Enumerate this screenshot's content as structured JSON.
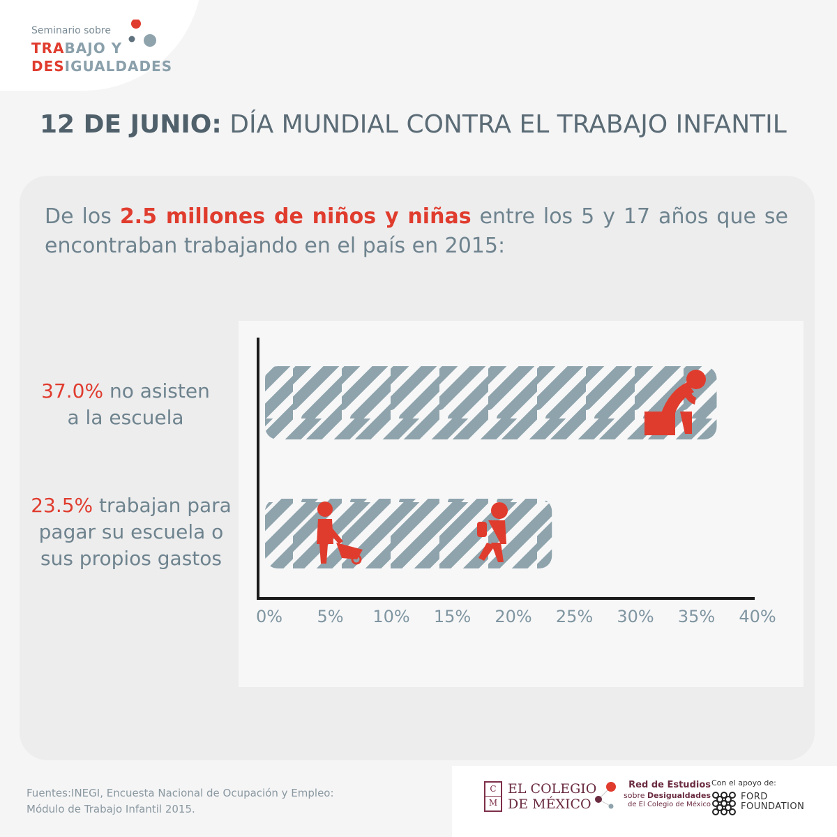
{
  "logo": {
    "pre": "Seminario sobre",
    "line1_red": "TRA",
    "line1_grey": "BAJO Y",
    "line2_red": "DES",
    "line2_grey": "IGUALDADES"
  },
  "title": {
    "date": "12 DE JUNIO:",
    "text": "DÍA MUNDIAL CONTRA EL TRABAJO INFANTIL"
  },
  "intro": {
    "before": "De los",
    "highlight": "2.5 millones de niños y niñas",
    "after": "entre los 5 y 17 años que se",
    "line2": "encontraban trabajando en el país en 2015:"
  },
  "rows": [
    {
      "pct": "37.0%",
      "text_a": "no asisten",
      "text_b": "a la escuela"
    },
    {
      "pct": "23.5%",
      "text_a": "trabajan para",
      "text_b": "pagar su escuela o",
      "text_c": "sus propios gastos"
    }
  ],
  "chart_data": {
    "type": "bar",
    "orientation": "horizontal",
    "categories": [
      "no asisten a la escuela",
      "trabajan para pagar su escuela o sus propios gastos"
    ],
    "values": [
      37.0,
      23.5
    ],
    "xlim": [
      0,
      40
    ],
    "ticks": [
      "0%",
      "5%",
      "10%",
      "15%",
      "20%",
      "25%",
      "30%",
      "35%",
      "40%"
    ],
    "tick_values": [
      0,
      5,
      10,
      15,
      20,
      25,
      30,
      35,
      40
    ],
    "colors": {
      "bar": "#8ea3ac",
      "icon": "#e03c2e",
      "axis": "#1a1a1a"
    },
    "icons": [
      "sitting-child-icon",
      "child-wheelbarrow-icon",
      "child-backpack-icon"
    ]
  },
  "footer": {
    "source_1": "Fuentes:INEGI, Encuesta Nacional de Ocupación y Empleo:",
    "source_2": "Módulo de Trabajo Infantil 2015.",
    "colmex_1": "EL COLEGIO",
    "colmex_2": "DE MÉXICO",
    "colmex_mark_1": "C",
    "colmex_mark_2": "M",
    "red_1": "Red de Estudios",
    "red_2a": "sobre",
    "red_2b": "Desigualdades",
    "red_3": "de El Colegio de México",
    "ford_support": "Con el apoyo de:",
    "ford_1": "FORD",
    "ford_2": "FOUNDATION"
  }
}
